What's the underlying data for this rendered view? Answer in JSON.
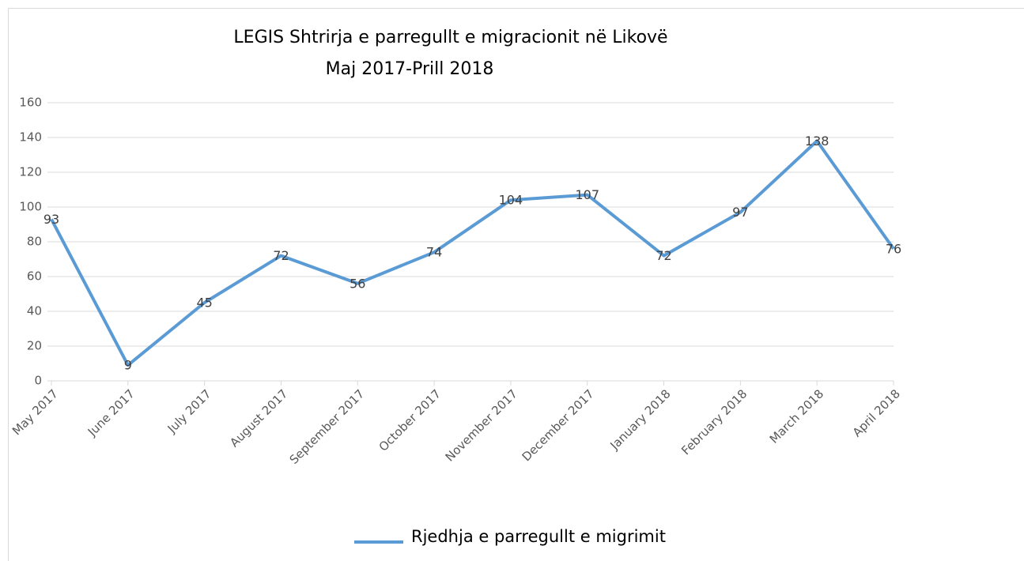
{
  "chart_data": {
    "type": "line",
    "title": "LEGIS Shtrirja e parregullt e migracionit në Likovë",
    "subtitle": "Maj 2017-Prill 2018",
    "categories": [
      "May 2017",
      "June 2017",
      "July 2017",
      "August 2017",
      "September 2017",
      "October 2017",
      "November 2017",
      "December 2017",
      "January 2018",
      "February 2018",
      "March 2018",
      "April 2018"
    ],
    "series": [
      {
        "name": "Rjedhja e parregullt e migrimit",
        "color": "#5b9bd5",
        "values": [
          93,
          9,
          45,
          72,
          56,
          74,
          104,
          107,
          72,
          97,
          138,
          76
        ]
      }
    ],
    "ylim": [
      0,
      160
    ],
    "yticks": [
      0,
      20,
      40,
      60,
      80,
      100,
      120,
      140,
      160
    ],
    "grid": true,
    "data_labels": true,
    "legend": "bottom"
  }
}
